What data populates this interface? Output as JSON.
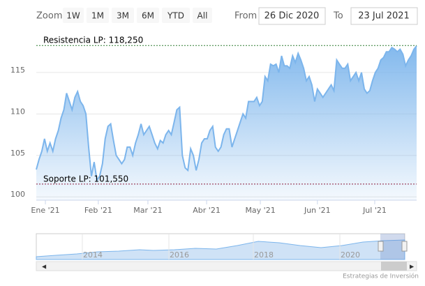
{
  "chart_data": {
    "type": "area",
    "range_selector": {
      "zoom_label": "Zoom",
      "buttons": [
        "1W",
        "1M",
        "3M",
        "6M",
        "YTD",
        "All"
      ],
      "from_label": "From",
      "from_value": "26 Dic 2020",
      "to_label": "To",
      "to_value": "23 Jul 2021"
    },
    "color": "#7cb5ec",
    "values": [
      103.3,
      104.5,
      105.5,
      107,
      105.5,
      106.5,
      105.5,
      107,
      108,
      109.5,
      110.5,
      112.5,
      111.5,
      110.5,
      112,
      112.7,
      111.5,
      111,
      110,
      106,
      102.5,
      104.2,
      102,
      102.5,
      104,
      107,
      108.5,
      108.8,
      106.8,
      105,
      104.5,
      104,
      104.5,
      106,
      106,
      105,
      106.5,
      107.5,
      108.8,
      107.5,
      108,
      108.5,
      107.5,
      106.5,
      105.8,
      106.8,
      106.5,
      107.5,
      108,
      107.5,
      109,
      110.5,
      110.8,
      105,
      103.5,
      103.2,
      105.8,
      105,
      103.2,
      104.5,
      106.5,
      107,
      107,
      108,
      108.5,
      106,
      105.5,
      106,
      107.5,
      108.2,
      108.2,
      106,
      107,
      108,
      109,
      110,
      109.5,
      111.5,
      111.5,
      111.5,
      112,
      111,
      111.5,
      114.5,
      114,
      116,
      115.8,
      116,
      115,
      117,
      115.8,
      115.8,
      115.5,
      117,
      116.2,
      117.3,
      116.5,
      115.5,
      114,
      114.5,
      113.5,
      111.5,
      113,
      112.5,
      112,
      112.5,
      113,
      113.5,
      112.8,
      116.5,
      116,
      115.5,
      115.5,
      116,
      114,
      114.5,
      115,
      114,
      115,
      113,
      112.5,
      112.8,
      114,
      115,
      115.5,
      116.5,
      116.8,
      117.5,
      117.5,
      118,
      117.8,
      117.5,
      117.8,
      117.2,
      115.8,
      116.5,
      117,
      117.8,
      118.2
    ],
    "xticks": [
      {
        "value": 3.3,
        "label": "Ene '21"
      },
      {
        "value": 22.5,
        "label": "Feb '21"
      },
      {
        "value": 40.5,
        "label": "Mar '21"
      },
      {
        "value": 61.8,
        "label": "Abr '21"
      },
      {
        "value": 81.3,
        "label": "May '21"
      },
      {
        "value": 102,
        "label": "Jun '21"
      },
      {
        "value": 122.8,
        "label": "Jul '21"
      }
    ],
    "ylim": [
      99.6,
      119.7
    ],
    "yticks": [
      100,
      105,
      110,
      115
    ],
    "grid": true,
    "plot_lines": [
      {
        "value": 118.25,
        "label": "Resistencia LP: 118,250"
      },
      {
        "value": 101.55,
        "label": "Soporte LP: 101,550"
      }
    ],
    "navigator_years": [
      "2014",
      "2016",
      "2018",
      "2020"
    ],
    "credits": "Estrategias de Inversión"
  }
}
